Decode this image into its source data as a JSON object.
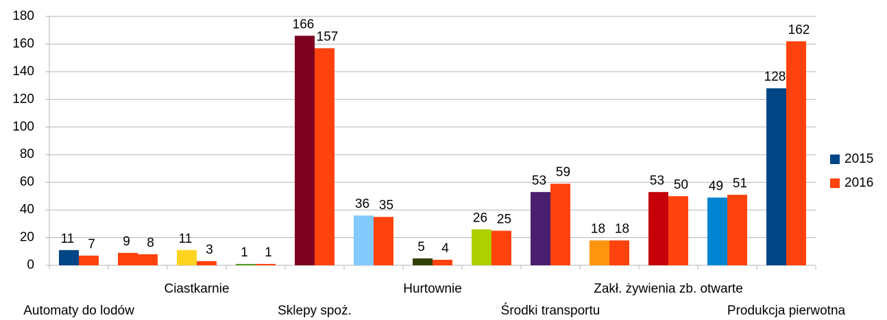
{
  "chart_data": {
    "type": "bar",
    "categories": [
      "Automaty do lodów",
      null,
      "Ciastkarnie",
      null,
      "Sklepy spoż.",
      null,
      "Hurtownie",
      null,
      "Środki transportu",
      null,
      "Zakł. żywienia zb. otwarte",
      null,
      "Produkcja pierwotna"
    ],
    "series": [
      {
        "name": "2015",
        "color": "#004586",
        "colors": [
          "#004586",
          "#ff420e",
          "#ffd320",
          "#579d1c",
          "#7e0021",
          "#83caff",
          "#314004",
          "#aecf00",
          "#4b1f6f",
          "#ff950e",
          "#c5000b",
          "#0084d1",
          "#004586"
        ],
        "values": [
          11,
          9,
          11,
          1,
          166,
          36,
          5,
          26,
          53,
          18,
          53,
          49,
          128
        ]
      },
      {
        "name": "2016",
        "color": "#ff420e",
        "values": [
          7,
          8,
          3,
          1,
          157,
          35,
          4,
          25,
          59,
          18,
          50,
          51,
          162
        ]
      }
    ],
    "ylim": [
      0,
      180
    ],
    "yticks": [
      0,
      20,
      40,
      60,
      80,
      100,
      120,
      140,
      160,
      180
    ],
    "grid": true,
    "legend": "right",
    "data_labels": true
  }
}
